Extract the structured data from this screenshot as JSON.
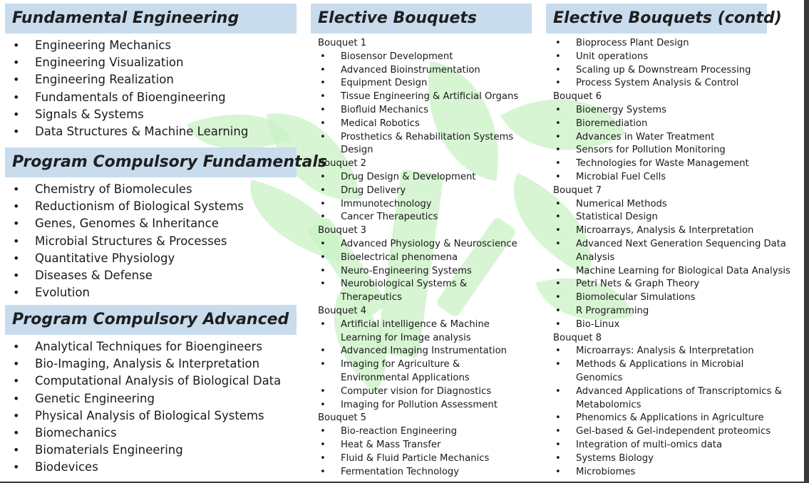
{
  "fundamental": {
    "title": "Fundamental Engineering",
    "items": [
      "Engineering Mechanics",
      "Engineering Visualization",
      "Engineering Realization",
      "Fundamentals of Bioengineering",
      "Signals & Systems",
      "Data Structures & Machine Learning"
    ]
  },
  "pc_fundamentals": {
    "title": "Program Compulsory Fundamentals",
    "items": [
      "Chemistry of Biomolecules",
      "Reductionism of Biological Systems",
      "Genes, Genomes & Inheritance",
      "Microbial Structures & Processes",
      "Quantitative Physiology",
      "Diseases & Defense",
      "Evolution"
    ]
  },
  "pc_advanced": {
    "title": "Program Compulsory Advanced",
    "items": [
      "Analytical Techniques for Bioengineers",
      "Bio-Imaging, Analysis & Interpretation",
      "Computational Analysis of Biological Data",
      "Genetic Engineering",
      "Physical Analysis of Biological Systems",
      "Biomechanics",
      "Biomaterials Engineering",
      "Biodevices"
    ]
  },
  "elective": {
    "title": "Elective Bouquets",
    "bouquets": [
      {
        "label": "Bouquet 1",
        "items": [
          "Biosensor Development",
          "Advanced Bioinstrumentation",
          "Equipment Design",
          "Tissue Engineering & Artificial Organs",
          "Biofluid Mechanics",
          "Medical Robotics",
          "Prosthetics & Rehabilitation Systems Design"
        ]
      },
      {
        "label": "Bouquet 2",
        "items": [
          "Drug Design & Development",
          "Drug Delivery",
          "Immunotechnology",
          "Cancer Therapeutics"
        ]
      },
      {
        "label": "Bouquet 3",
        "items": [
          "Advanced Physiology & Neuroscience",
          "Bioelectrical phenomena",
          "Neuro-Engineering Systems",
          "Neurobiological Systems & Therapeutics"
        ]
      },
      {
        "label": "Bouquet 4",
        "items": [
          "Artificial intelligence & Machine Learning for Image analysis",
          "Advanced Imaging Instrumentation",
          "Imaging for Agriculture & Environmental Applications",
          "Computer vision for Diagnostics",
          "Imaging for Pollution Assessment"
        ]
      },
      {
        "label": "Bouquet 5",
        "items": [
          "Bio-reaction Engineering",
          "Heat & Mass Transfer",
          "Fluid & Fluid Particle Mechanics",
          "Fermentation Technology"
        ]
      }
    ]
  },
  "elective_contd": {
    "title": "Elective Bouquets (contd)",
    "lead_items": [
      "Bioprocess Plant Design",
      "Unit operations",
      "Scaling up & Downstream Processing",
      "Process System Analysis & Control"
    ],
    "bouquets": [
      {
        "label": "Bouquet 6",
        "items": [
          "Bioenergy Systems",
          "Bioremediation",
          "Advances in Water Treatment",
          "Sensors for Pollution Monitoring",
          "Technologies for Waste Management",
          "Microbial Fuel Cells"
        ]
      },
      {
        "label": "Bouquet 7",
        "items": [
          "Numerical Methods",
          "Statistical Design",
          "Microarrays, Analysis & Interpretation",
          "Advanced Next Generation Sequencing Data Analysis",
          "Machine Learning for Biological Data Analysis",
          "Petri Nets & Graph Theory",
          "Biomolecular Simulations",
          "R Programming",
          "Bio-Linux"
        ]
      },
      {
        "label": "Bouquet 8",
        "items": [
          "Microarrays: Analysis & Interpretation",
          "Methods & Applications in Microbial Genomics",
          "Advanced Applications of Transcriptomics & Metabolomics",
          "Phenomics & Applications in Agriculture",
          "Gel-based & Gel-independent proteomics",
          "Integration of multi-omics data",
          "Systems Biology",
          "Microbiomes"
        ]
      }
    ]
  },
  "colors": {
    "header_bg": "#c8dcee",
    "watermark": "#c9f1c4"
  }
}
